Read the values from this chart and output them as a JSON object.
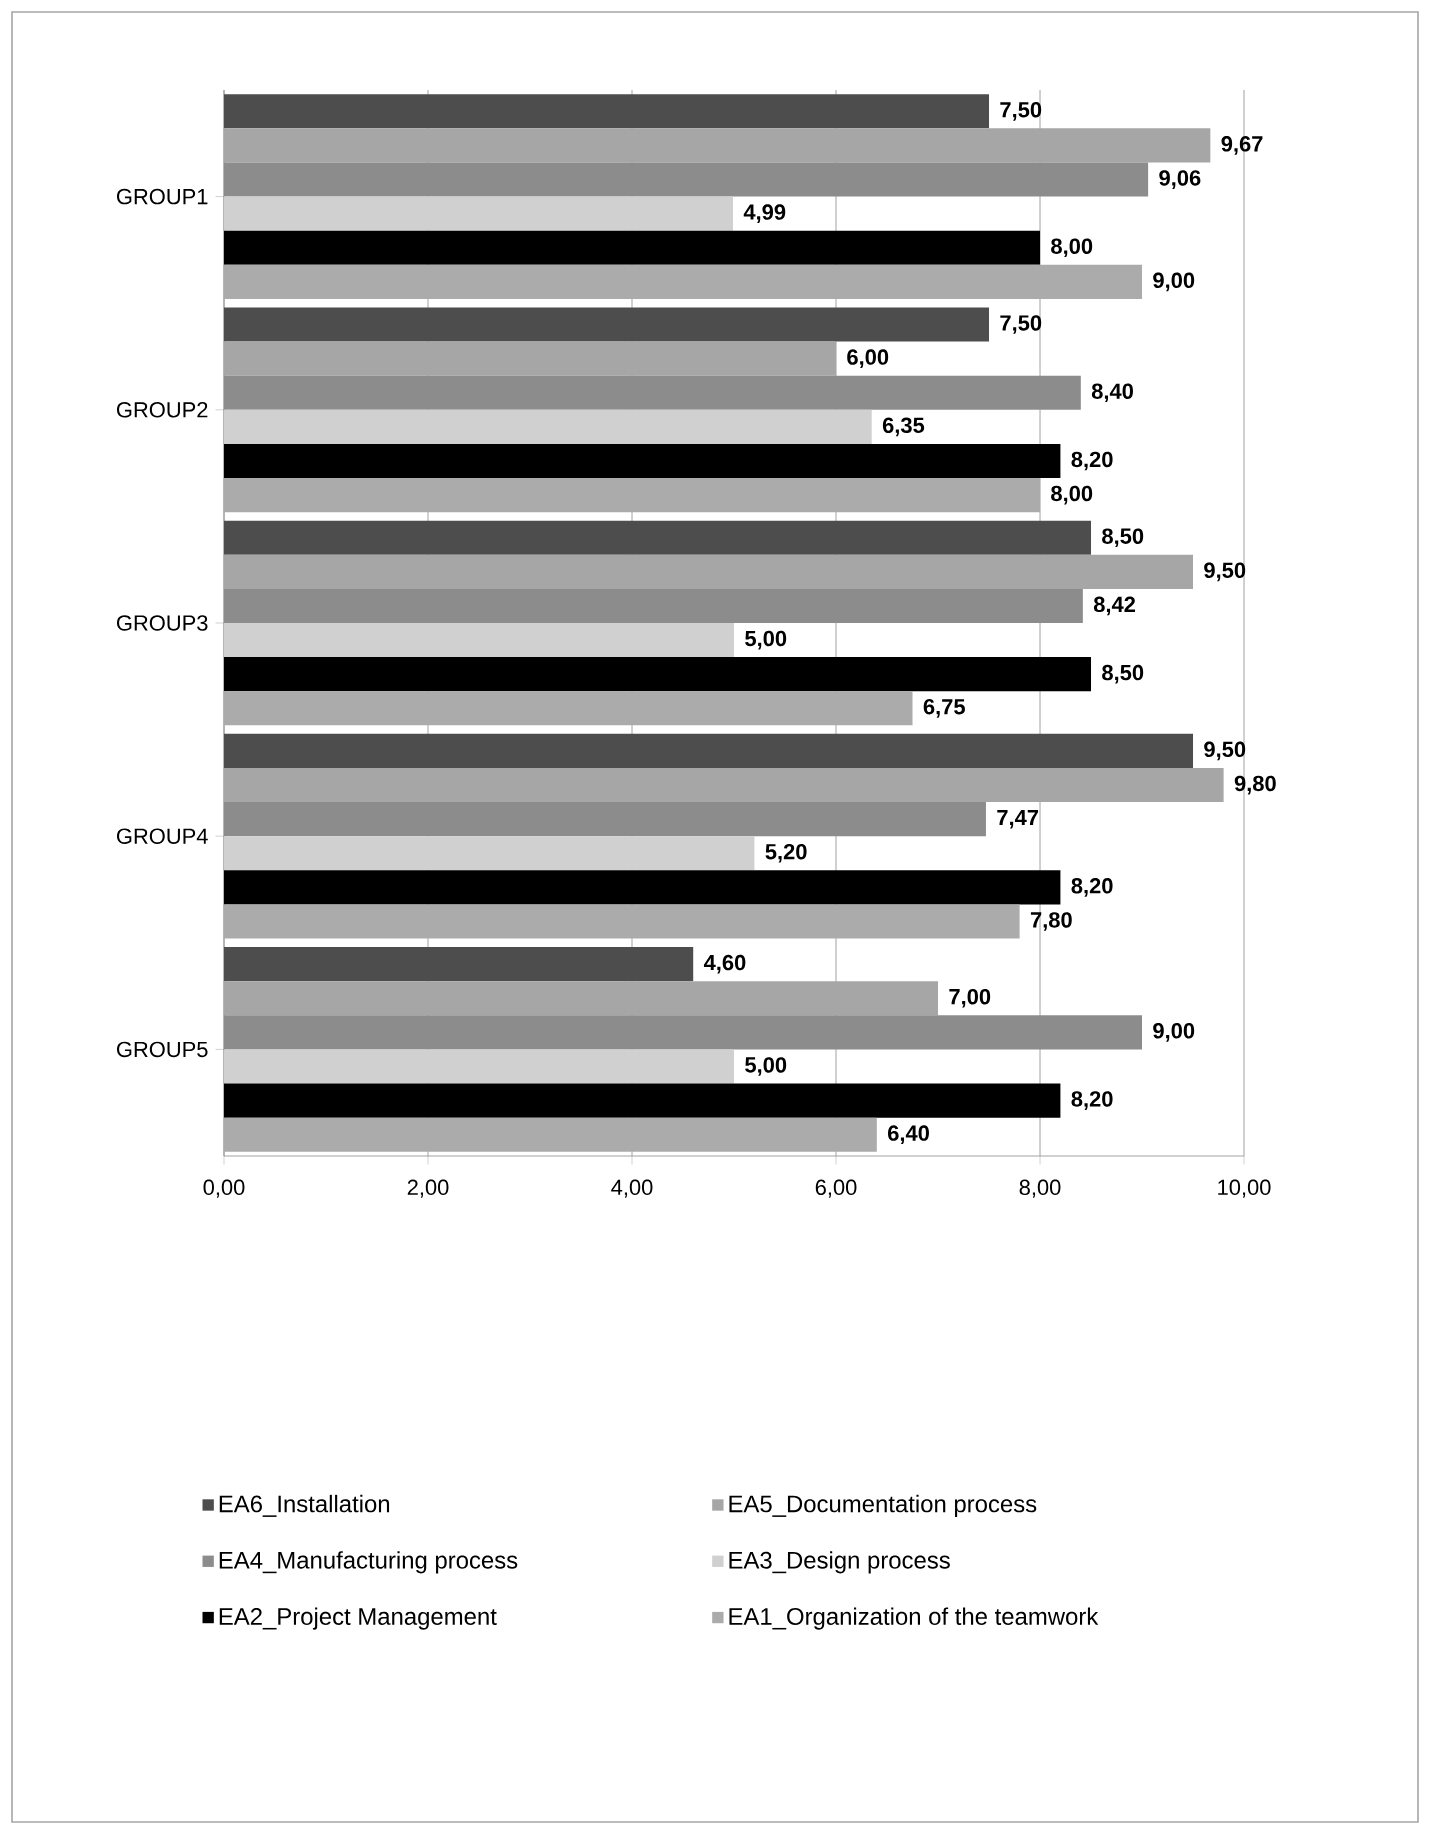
{
  "chart_data": {
    "type": "bar",
    "orientation": "horizontal",
    "categories": [
      "GROUP1",
      "GROUP2",
      "GROUP3",
      "GROUP4",
      "GROUP5"
    ],
    "series": [
      {
        "name": "EA6_Installation",
        "color": "#4d4d4d",
        "values": [
          7.5,
          7.5,
          8.5,
          9.5,
          4.6
        ],
        "value_labels": [
          "7,50",
          "7,50",
          "8,50",
          "9,50",
          "4,60"
        ]
      },
      {
        "name": "EA5_Documentation process",
        "color": "#a6a6a6",
        "values": [
          9.67,
          6.0,
          9.5,
          9.8,
          7.0
        ],
        "value_labels": [
          "9,67",
          "6,00",
          "9,50",
          "9,80",
          "7,00"
        ]
      },
      {
        "name": "EA4_Manufacturing process",
        "color": "#8c8c8c",
        "values": [
          9.06,
          8.4,
          8.42,
          7.47,
          9.0
        ],
        "value_labels": [
          "9,06",
          "8,40",
          "8,42",
          "7,47",
          "9,00"
        ]
      },
      {
        "name": "EA3_Design process",
        "color": "#d0d0d0",
        "values": [
          4.99,
          6.35,
          5.0,
          5.2,
          5.0
        ],
        "value_labels": [
          "4,99",
          "6,35",
          "5,00",
          "5,20",
          "5,00"
        ]
      },
      {
        "name": "EA2_Project Management",
        "color": "#000000",
        "values": [
          8.0,
          8.2,
          8.5,
          8.2,
          8.2
        ],
        "value_labels": [
          "8,00",
          "8,20",
          "8,50",
          "8,20",
          "8,20"
        ]
      },
      {
        "name": "EA1_Organization of the teamwork",
        "color": "#ababab",
        "values": [
          9.0,
          8.0,
          6.75,
          7.8,
          6.4
        ],
        "value_labels": [
          "9,00",
          "8,00",
          "6,75",
          "7,80",
          "6,40"
        ]
      }
    ],
    "xlim": [
      0,
      10
    ],
    "xticks": [
      {
        "value": 0,
        "label": "0,00"
      },
      {
        "value": 2,
        "label": "2,00"
      },
      {
        "value": 4,
        "label": "4,00"
      },
      {
        "value": 6,
        "label": "6,00"
      },
      {
        "value": 8,
        "label": "8,00"
      },
      {
        "value": 10,
        "label": "10,00"
      }
    ],
    "grid": "x",
    "legend": "bottom"
  }
}
